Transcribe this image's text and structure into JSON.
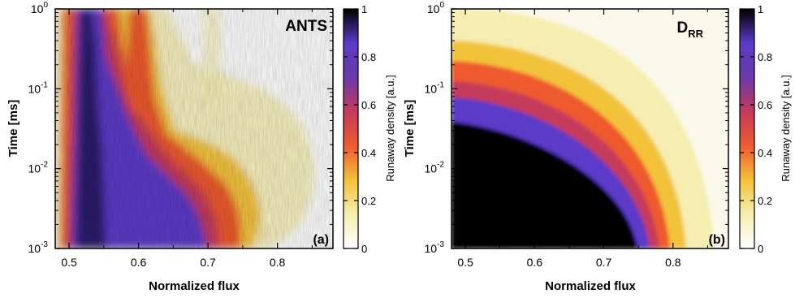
{
  "chart_data": [
    {
      "type": "heatmap",
      "panel_label": "(a)",
      "title": "ANTS",
      "title_sub": "",
      "xlabel": "Normalized flux",
      "ylabel": "Time [ms]",
      "xlim": [
        0.48,
        0.88
      ],
      "ylim": [
        0.001,
        1
      ],
      "y_scale": "log",
      "x_ticks": [
        "0.5",
        "0.6",
        "0.7",
        "0.8"
      ],
      "y_ticks": [
        {
          "base": "10",
          "exp": "-3"
        },
        {
          "base": "10",
          "exp": "-2"
        },
        {
          "base": "10",
          "exp": "-1"
        },
        {
          "base": "10",
          "exp": "0"
        }
      ],
      "colorbar": {
        "label": "Runaway density [a.u.]",
        "range": [
          0,
          1
        ],
        "ticks": [
          "0",
          "0.2",
          "0.4",
          "0.6",
          "0.8",
          "1"
        ]
      }
    },
    {
      "type": "heatmap",
      "panel_label": "(b)",
      "title": "D",
      "title_sub": "RR",
      "xlabel": "Normalized flux",
      "ylabel": "Time [ms]",
      "xlim": [
        0.48,
        0.88
      ],
      "ylim": [
        0.001,
        1
      ],
      "y_scale": "log",
      "x_ticks": [
        "0.5",
        "0.6",
        "0.7",
        "0.8"
      ],
      "y_ticks": [
        {
          "base": "10",
          "exp": "-3"
        },
        {
          "base": "10",
          "exp": "-2"
        },
        {
          "base": "10",
          "exp": "-1"
        },
        {
          "base": "10",
          "exp": "0"
        }
      ],
      "colorbar": {
        "label": "Runaway density [a.u.]",
        "range": [
          0,
          1
        ],
        "ticks": [
          "0",
          "0.2",
          "0.4",
          "0.6",
          "0.8",
          "1"
        ]
      }
    }
  ],
  "colormap": [
    "#ffffff",
    "#f6eeb0",
    "#f3c23a",
    "#ee5a2f",
    "#c43a5c",
    "#6a3aa8",
    "#5b3bc8",
    "#000000"
  ]
}
